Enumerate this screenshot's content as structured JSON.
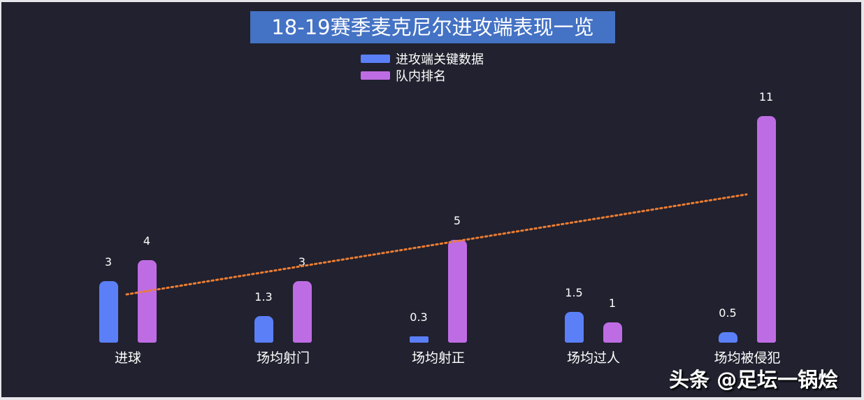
{
  "chart_data": {
    "type": "bar",
    "title": "18-19赛季麦克尼尔进攻端表现一览",
    "categories": [
      "进球",
      "场均射门",
      "场均射正",
      "场均过人",
      "场均被侵犯"
    ],
    "series": [
      {
        "name": "进攻端关键数据",
        "color": "#5b7ff7",
        "values": [
          3,
          1.3,
          0.3,
          1.5,
          0.5
        ],
        "labels": [
          "3",
          "1.3",
          "0.3",
          "1.5",
          "0.5"
        ]
      },
      {
        "name": "队内排名",
        "color": "#be6ce4",
        "values": [
          4,
          3,
          5,
          1,
          11
        ],
        "labels": [
          "4",
          "3",
          "5",
          "1",
          "11"
        ]
      }
    ],
    "trendline": {
      "series": "队内排名",
      "type": "linear",
      "style": "dotted",
      "color": "#ed7d31"
    },
    "xlabel": "",
    "ylabel": "",
    "ylim": [
      0,
      11
    ],
    "grid": false,
    "legend_position": "top"
  },
  "title": "18-19赛季麦克尼尔进攻端表现一览",
  "legend": [
    {
      "label": "进攻端关键数据",
      "color": "#5b7ff7"
    },
    {
      "label": "队内排名",
      "color": "#be6ce4"
    }
  ],
  "watermark": "头条 @足坛一锅烩"
}
